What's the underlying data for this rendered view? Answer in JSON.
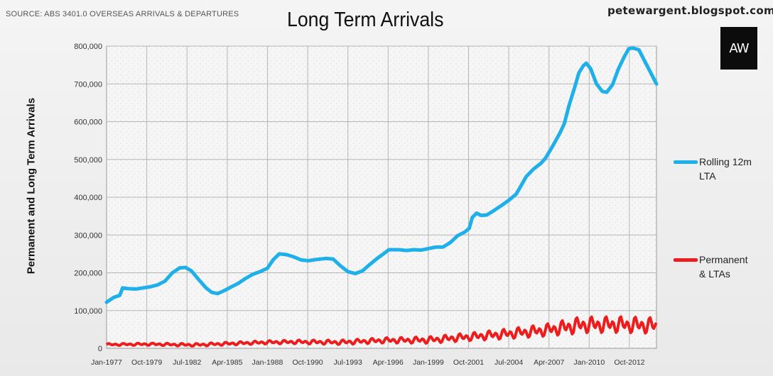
{
  "source": "SOURCE: ABS 3401.0 OVERSEAS ARRIVALS & DEPARTURES",
  "site": "petewargent.blogspot.com",
  "logo_text": "AW",
  "chart_data": {
    "type": "line",
    "title": "Long Term Arrivals",
    "xlabel": "",
    "ylabel": "Permanent and Long Term Arrivals",
    "ylim": [
      0,
      800000
    ],
    "yticks": [
      "0",
      "100,000",
      "200,000",
      "300,000",
      "400,000",
      "500,000",
      "600,000",
      "700,000",
      "800,000"
    ],
    "xticks": [
      "Jan-1977",
      "Oct-1979",
      "Jul-1982",
      "Apr-1985",
      "Jan-1988",
      "Oct-1990",
      "Jul-1993",
      "Apr-1996",
      "Jan-1999",
      "Oct-2001",
      "Jul-2004",
      "Apr-2007",
      "Jan-2010",
      "Oct-2012"
    ],
    "grid": true,
    "legend_position": "right",
    "series": [
      {
        "name": "Rolling 12m LTA",
        "color": "#1fb0ea",
        "points": [
          [
            1977.0,
            122000
          ],
          [
            1977.5,
            135000
          ],
          [
            1977.9,
            140000
          ],
          [
            1978.1,
            160000
          ],
          [
            1978.5,
            158000
          ],
          [
            1979.0,
            157000
          ],
          [
            1979.5,
            160000
          ],
          [
            1980.0,
            163000
          ],
          [
            1980.5,
            168000
          ],
          [
            1981.0,
            178000
          ],
          [
            1981.5,
            200000
          ],
          [
            1982.0,
            213000
          ],
          [
            1982.4,
            214000
          ],
          [
            1982.8,
            205000
          ],
          [
            1983.3,
            182000
          ],
          [
            1983.8,
            160000
          ],
          [
            1984.2,
            148000
          ],
          [
            1984.6,
            145000
          ],
          [
            1985.0,
            152000
          ],
          [
            1985.5,
            162000
          ],
          [
            1986.0,
            172000
          ],
          [
            1986.5,
            185000
          ],
          [
            1987.0,
            196000
          ],
          [
            1987.5,
            203000
          ],
          [
            1988.0,
            212000
          ],
          [
            1988.4,
            235000
          ],
          [
            1988.8,
            250000
          ],
          [
            1989.3,
            248000
          ],
          [
            1989.8,
            242000
          ],
          [
            1990.3,
            234000
          ],
          [
            1990.8,
            232000
          ],
          [
            1991.3,
            235000
          ],
          [
            1992.0,
            238000
          ],
          [
            1992.5,
            236000
          ],
          [
            1993.0,
            218000
          ],
          [
            1993.5,
            203000
          ],
          [
            1994.0,
            198000
          ],
          [
            1994.5,
            205000
          ],
          [
            1995.0,
            222000
          ],
          [
            1995.5,
            238000
          ],
          [
            1996.0,
            252000
          ],
          [
            1996.3,
            261000
          ],
          [
            1997.0,
            261000
          ],
          [
            1997.5,
            259000
          ],
          [
            1998.0,
            261000
          ],
          [
            1998.5,
            260000
          ],
          [
            1999.0,
            264000
          ],
          [
            1999.5,
            268000
          ],
          [
            2000.0,
            268000
          ],
          [
            2000.5,
            280000
          ],
          [
            2001.0,
            298000
          ],
          [
            2001.5,
            308000
          ],
          [
            2001.8,
            318000
          ],
          [
            2002.0,
            346000
          ],
          [
            2002.3,
            358000
          ],
          [
            2002.6,
            352000
          ],
          [
            2003.0,
            353000
          ],
          [
            2003.5,
            365000
          ],
          [
            2004.0,
            378000
          ],
          [
            2004.5,
            392000
          ],
          [
            2005.0,
            408000
          ],
          [
            2005.3,
            428000
          ],
          [
            2005.7,
            455000
          ],
          [
            2006.2,
            475000
          ],
          [
            2006.7,
            490000
          ],
          [
            2007.0,
            503000
          ],
          [
            2007.5,
            535000
          ],
          [
            2008.0,
            570000
          ],
          [
            2008.3,
            595000
          ],
          [
            2008.6,
            640000
          ],
          [
            2009.0,
            690000
          ],
          [
            2009.3,
            730000
          ],
          [
            2009.6,
            748000
          ],
          [
            2009.8,
            755000
          ],
          [
            2010.1,
            740000
          ],
          [
            2010.5,
            700000
          ],
          [
            2010.9,
            680000
          ],
          [
            2011.2,
            678000
          ],
          [
            2011.6,
            698000
          ],
          [
            2012.0,
            740000
          ],
          [
            2012.4,
            772000
          ],
          [
            2012.7,
            793000
          ],
          [
            2013.0,
            795000
          ],
          [
            2013.4,
            790000
          ],
          [
            2013.8,
            760000
          ],
          [
            2014.2,
            730000
          ],
          [
            2014.6,
            700000
          ]
        ]
      },
      {
        "name": "Permanent & LTAs",
        "color": "#ee1d1d",
        "start": 1977.0,
        "end": 2014.6,
        "trend": [
          [
            1977.0,
            10000
          ],
          [
            1980.0,
            11000
          ],
          [
            1983.0,
            9000
          ],
          [
            1985.0,
            12000
          ],
          [
            1988.0,
            16000
          ],
          [
            1990.0,
            17000
          ],
          [
            1993.0,
            16000
          ],
          [
            1996.0,
            21000
          ],
          [
            1999.0,
            22000
          ],
          [
            2001.0,
            28000
          ],
          [
            2004.0,
            37000
          ],
          [
            2007.0,
            48000
          ],
          [
            2009.5,
            62000
          ],
          [
            2012.0,
            63000
          ],
          [
            2014.6,
            60000
          ]
        ],
        "seasonal_amplitude": [
          [
            1977.0,
            3000
          ],
          [
            1988.0,
            5000
          ],
          [
            1996.0,
            8000
          ],
          [
            2002.0,
            12000
          ],
          [
            2007.0,
            18000
          ],
          [
            2009.0,
            24000
          ],
          [
            2014.6,
            24000
          ]
        ]
      }
    ]
  }
}
